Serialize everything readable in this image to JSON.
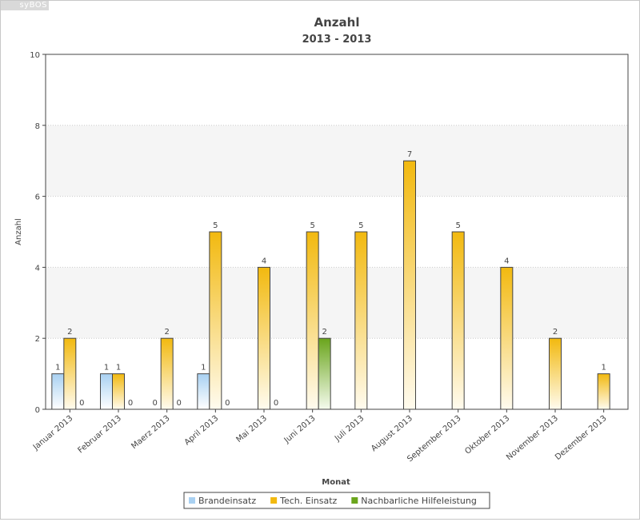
{
  "brand_label": "syBOS",
  "chart_data": {
    "type": "bar",
    "title": "Anzahl",
    "subtitle": "2013 - 2013",
    "xlabel": "Monat",
    "ylabel": "Anzahl",
    "ylim": [
      0,
      10
    ],
    "yticks": [
      0,
      2,
      4,
      6,
      8,
      10
    ],
    "grid": true,
    "legend_position": "bottom",
    "categories": [
      "Januar 2013",
      "Februar 2013",
      "Maerz 2013",
      "April 2013",
      "Mai 2013",
      "Juni 2013",
      "Juli 2013",
      "August 2013",
      "September 2013",
      "Oktober 2013",
      "November 2013",
      "Dezember 2013"
    ],
    "series": [
      {
        "name": "Brandeinsatz",
        "color": "#a9d1f2",
        "values": [
          1,
          1,
          0,
          1,
          null,
          null,
          null,
          null,
          null,
          null,
          null,
          null
        ]
      },
      {
        "name": "Tech. Einsatz",
        "color": "#f2b90f",
        "values": [
          2,
          1,
          2,
          5,
          4,
          5,
          5,
          7,
          5,
          4,
          2,
          1
        ]
      },
      {
        "name": "Nachbarliche Hilfeleistung",
        "color": "#6aa51c",
        "values": [
          0,
          0,
          0,
          0,
          0,
          2,
          null,
          null,
          null,
          null,
          null,
          null
        ]
      }
    ]
  }
}
